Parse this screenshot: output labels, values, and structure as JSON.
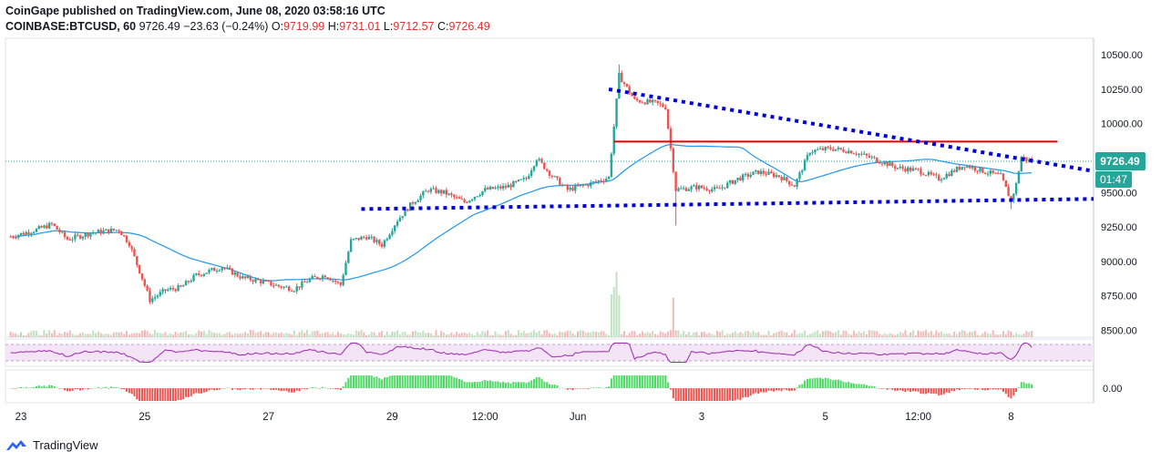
{
  "header": {
    "published": "CoinGape published on TradingView.com, June 08, 2020 03:58:16 UTC",
    "symbol": "COINBASE:BTCUSD, 60",
    "last": "9726.49",
    "change": "−23.63 (−0.24%)",
    "o_label": "O:",
    "o": "9719.99",
    "h_label": "H:",
    "h": "9731.01",
    "l_label": "L:",
    "l": "9712.57",
    "c_label": "C:",
    "c": "9726.49"
  },
  "footer": {
    "brand": "TradingView"
  },
  "colors": {
    "up": "#26a69a",
    "down": "#ef5350",
    "ma": "#2196f3",
    "trend": "#0000dd",
    "resistance": "#e00000",
    "rsi": "#9c27b0",
    "rsi_band": "#f3e5f5",
    "hist_up": "#4cd964",
    "hist_down": "#ef5350"
  },
  "chart_data": {
    "type": "candlestick",
    "ylim": [
      8450,
      10620
    ],
    "y_ticks": [
      "10500.00",
      "10250.00",
      "10000.00",
      "9750.00",
      "9500.00",
      "9250.00",
      "9000.00",
      "8750.00",
      "8500.00"
    ],
    "x_ticks": [
      "23",
      "25",
      "27",
      "29",
      "12:00",
      "Jun",
      "3",
      "5",
      "12:00",
      "8"
    ],
    "price_label": "9726.49",
    "countdown_label": "01:47",
    "current_price": 9726.49,
    "resistance_level": 9870,
    "upper_trendline": [
      {
        "x": "Jun 1 12:00",
        "y": 10250
      },
      {
        "x": "Jun 8 18:00",
        "y": 9700
      }
    ],
    "lower_trendline": [
      {
        "x": "May 28 12:00",
        "y": 9380
      },
      {
        "x": "Jun 8 18:00",
        "y": 9450
      }
    ],
    "path": [
      [
        "May 22 20:00",
        9180
      ],
      [
        "May 23 06:00",
        9230
      ],
      [
        "May 23 12:00",
        9270
      ],
      [
        "May 23 18:00",
        9160
      ],
      [
        "May 24 04:00",
        9210
      ],
      [
        "May 24 14:00",
        9230
      ],
      [
        "May 24 18:00",
        9130
      ],
      [
        "May 24 22:00",
        8930
      ],
      [
        "May 25 02:00",
        8720
      ],
      [
        "May 25 08:00",
        8790
      ],
      [
        "May 25 14:00",
        8810
      ],
      [
        "May 25 20:00",
        8900
      ],
      [
        "May 26 06:00",
        8960
      ],
      [
        "May 26 14:00",
        8880
      ],
      [
        "May 26 20:00",
        8860
      ],
      [
        "May 27 04:00",
        8820
      ],
      [
        "May 27 10:00",
        8800
      ],
      [
        "May 27 16:00",
        8870
      ],
      [
        "May 27 22:00",
        8900
      ],
      [
        "May 28 04:00",
        8830
      ],
      [
        "May 28 08:00",
        9150
      ],
      [
        "May 28 14:00",
        9180
      ],
      [
        "May 28 20:00",
        9120
      ],
      [
        "May 29 02:00",
        9300
      ],
      [
        "May 29 08:00",
        9430
      ],
      [
        "May 29 14:00",
        9520
      ],
      [
        "May 29 20:00",
        9500
      ],
      [
        "May 30 04:00",
        9430
      ],
      [
        "May 30 12:00",
        9520
      ],
      [
        "May 30 20:00",
        9540
      ],
      [
        "May 31 04:00",
        9600
      ],
      [
        "May 31 08:00",
        9750
      ],
      [
        "May 31 14:00",
        9620
      ],
      [
        "May 31 20:00",
        9520
      ],
      [
        "Jun 1 04:00",
        9560
      ],
      [
        "Jun 1 12:00",
        9610
      ],
      [
        "Jun 1 16:00",
        10350
      ],
      [
        "Jun 1 22:00",
        10170
      ],
      [
        "Jun 2 06:00",
        10150
      ],
      [
        "Jun 2 10:00",
        10120
      ],
      [
        "Jun 2 14:00",
        9520
      ],
      [
        "Jun 2 22:00",
        9540
      ],
      [
        "Jun 3 06:00",
        9520
      ],
      [
        "Jun 3 14:00",
        9600
      ],
      [
        "Jun 3 22:00",
        9650
      ],
      [
        "Jun 4 06:00",
        9620
      ],
      [
        "Jun 4 12:00",
        9550
      ],
      [
        "Jun 4 18:00",
        9800
      ],
      [
        "Jun 5 02:00",
        9820
      ],
      [
        "Jun 5 10:00",
        9800
      ],
      [
        "Jun 5 18:00",
        9750
      ],
      [
        "Jun 6 04:00",
        9680
      ],
      [
        "Jun 6 12:00",
        9660
      ],
      [
        "Jun 6 20:00",
        9600
      ],
      [
        "Jun 7 06:00",
        9700
      ],
      [
        "Jun 7 14:00",
        9650
      ],
      [
        "Jun 7 20:00",
        9620
      ],
      [
        "Jun 8 00:00",
        9440
      ],
      [
        "Jun 8 02:00",
        9560
      ],
      [
        "Jun 8 04:00",
        9760
      ],
      [
        "Jun 8 06:00",
        9740
      ],
      [
        "Jun 8 08:00",
        9726
      ]
    ]
  }
}
